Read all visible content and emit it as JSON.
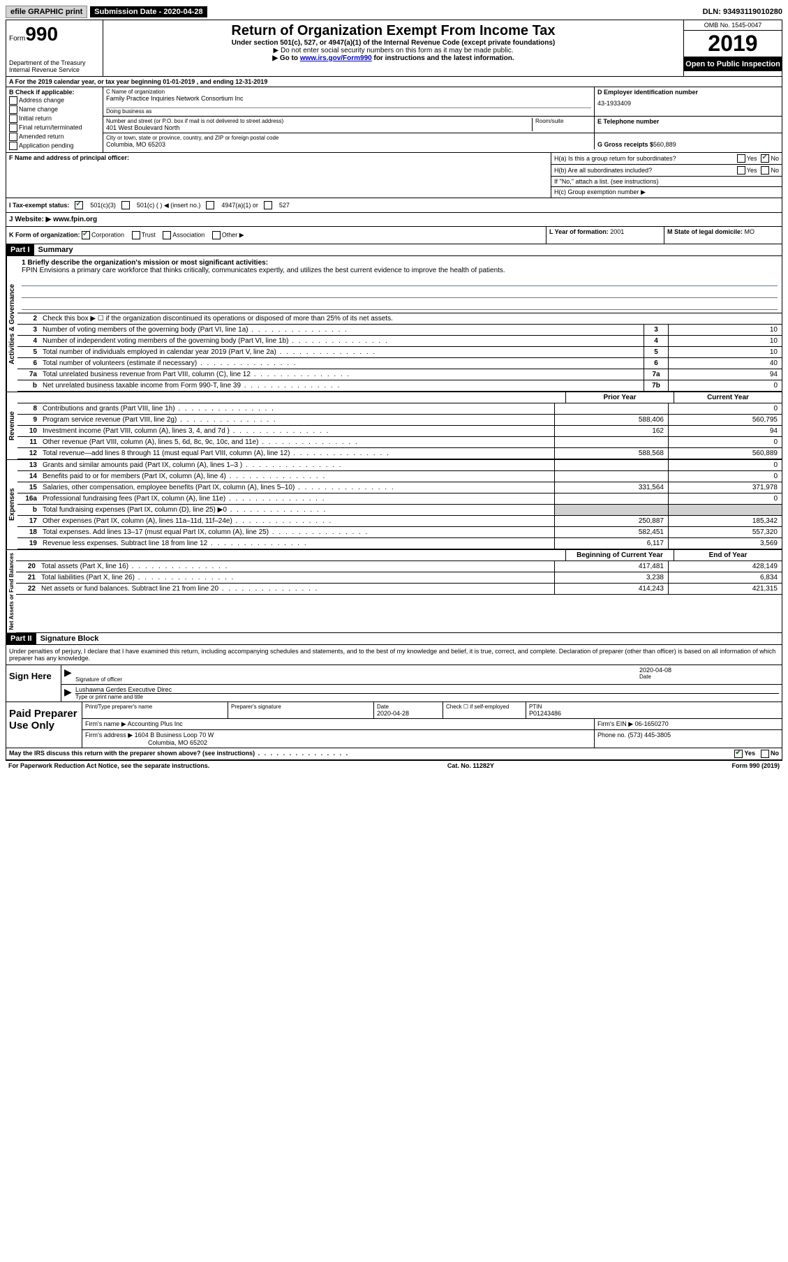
{
  "topbar": {
    "efile": "efile GRAPHIC print",
    "submission_label": "Submission Date - 2020-04-28",
    "dln": "DLN: 93493119010280"
  },
  "header": {
    "form_label": "Form",
    "form_number": "990",
    "dept": "Department of the Treasury\nInternal Revenue Service",
    "title": "Return of Organization Exempt From Income Tax",
    "subtitle": "Under section 501(c), 527, or 4947(a)(1) of the Internal Revenue Code (except private foundations)",
    "inst1": "▶ Do not enter social security numbers on this form as it may be made public.",
    "inst2_pre": "▶ Go to ",
    "inst2_link": "www.irs.gov/Form990",
    "inst2_post": " for instructions and the latest information.",
    "omb": "OMB No. 1545-0047",
    "year": "2019",
    "inspection": "Open to Public Inspection"
  },
  "line_a": "A   For the 2019 calendar year, or tax year beginning 01-01-2019    , and ending 12-31-2019",
  "section_b": {
    "label": "B Check if applicable:",
    "items": [
      "Address change",
      "Name change",
      "Initial return",
      "Final return/terminated",
      "Amended return",
      "Application pending"
    ]
  },
  "section_c": {
    "name_label": "C Name of organization",
    "name": "Family Practice Inquiries Network Consortium Inc",
    "dba_label": "Doing business as",
    "dba": "",
    "addr_label": "Number and street (or P.O. box if mail is not delivered to street address)",
    "room_label": "Room/suite",
    "addr": "401 West Boulevard North",
    "city_label": "City or town, state or province, country, and ZIP or foreign postal code",
    "city": "Columbia, MO  65203"
  },
  "section_d": {
    "label": "D Employer identification number",
    "value": "43-1933409"
  },
  "section_e": {
    "label": "E Telephone number",
    "value": ""
  },
  "section_g": {
    "label": "G Gross receipts $",
    "value": "560,889"
  },
  "section_f": {
    "label": "F  Name and address of principal officer:",
    "value": ""
  },
  "section_h": {
    "ha": "H(a)  Is this a group return for subordinates?",
    "hb": "H(b)  Are all subordinates included?",
    "hb_note": "If \"No,\" attach a list. (see instructions)",
    "hc": "H(c)  Group exemption number ▶"
  },
  "section_i": {
    "label": "I   Tax-exempt status:",
    "opts": [
      "501(c)(3)",
      "501(c) (  ) ◀ (insert no.)",
      "4947(a)(1) or",
      "527"
    ]
  },
  "section_j": {
    "label": "J   Website: ▶",
    "value": "www.fpin.org"
  },
  "section_k": {
    "label": "K Form of organization:",
    "opts": [
      "Corporation",
      "Trust",
      "Association",
      "Other ▶"
    ]
  },
  "section_l": {
    "label": "L Year of formation:",
    "value": "2001"
  },
  "section_m": {
    "label": "M State of legal domicile:",
    "value": "MO"
  },
  "part1": {
    "header": "Part I",
    "title": "Summary",
    "mission_label": "1   Briefly describe the organization's mission or most significant activities:",
    "mission": "FPIN Envisions a primary care workforce that thinks critically, communicates expertly, and utilizes the best current evidence to improve the health of patients.",
    "line2": "Check this box ▶ ☐  if the organization discontinued its operations or disposed of more than 25% of its net assets.",
    "rows_gov": [
      {
        "n": "3",
        "t": "Number of voting members of the governing body (Part VI, line 1a)",
        "b": "3",
        "v": "10"
      },
      {
        "n": "4",
        "t": "Number of independent voting members of the governing body (Part VI, line 1b)",
        "b": "4",
        "v": "10"
      },
      {
        "n": "5",
        "t": "Total number of individuals employed in calendar year 2019 (Part V, line 2a)",
        "b": "5",
        "v": "10"
      },
      {
        "n": "6",
        "t": "Total number of volunteers (estimate if necessary)",
        "b": "6",
        "v": "40"
      },
      {
        "n": "7a",
        "t": "Total unrelated business revenue from Part VIII, column (C), line 12",
        "b": "7a",
        "v": "94"
      },
      {
        "n": "b",
        "t": "Net unrelated business taxable income from Form 990-T, line 39",
        "b": "7b",
        "v": "0"
      }
    ],
    "col_prior": "Prior Year",
    "col_current": "Current Year",
    "rows_rev": [
      {
        "n": "8",
        "t": "Contributions and grants (Part VIII, line 1h)",
        "p": "",
        "c": "0"
      },
      {
        "n": "9",
        "t": "Program service revenue (Part VIII, line 2g)",
        "p": "588,406",
        "c": "560,795"
      },
      {
        "n": "10",
        "t": "Investment income (Part VIII, column (A), lines 3, 4, and 7d )",
        "p": "162",
        "c": "94"
      },
      {
        "n": "11",
        "t": "Other revenue (Part VIII, column (A), lines 5, 6d, 8c, 9c, 10c, and 11e)",
        "p": "",
        "c": "0"
      },
      {
        "n": "12",
        "t": "Total revenue—add lines 8 through 11 (must equal Part VIII, column (A), line 12)",
        "p": "588,568",
        "c": "560,889"
      }
    ],
    "rows_exp": [
      {
        "n": "13",
        "t": "Grants and similar amounts paid (Part IX, column (A), lines 1–3 )",
        "p": "",
        "c": "0"
      },
      {
        "n": "14",
        "t": "Benefits paid to or for members (Part IX, column (A), line 4)",
        "p": "",
        "c": "0"
      },
      {
        "n": "15",
        "t": "Salaries, other compensation, employee benefits (Part IX, column (A), lines 5–10)",
        "p": "331,564",
        "c": "371,978"
      },
      {
        "n": "16a",
        "t": "Professional fundraising fees (Part IX, column (A), line 11e)",
        "p": "",
        "c": "0"
      },
      {
        "n": "b",
        "t": "Total fundraising expenses (Part IX, column (D), line 25) ▶0",
        "p": "SHADE",
        "c": "SHADE"
      },
      {
        "n": "17",
        "t": "Other expenses (Part IX, column (A), lines 11a–11d, 11f–24e)",
        "p": "250,887",
        "c": "185,342"
      },
      {
        "n": "18",
        "t": "Total expenses. Add lines 13–17 (must equal Part IX, column (A), line 25)",
        "p": "582,451",
        "c": "557,320"
      },
      {
        "n": "19",
        "t": "Revenue less expenses. Subtract line 18 from line 12",
        "p": "6,117",
        "c": "3,569"
      }
    ],
    "col_begin": "Beginning of Current Year",
    "col_end": "End of Year",
    "rows_net": [
      {
        "n": "20",
        "t": "Total assets (Part X, line 16)",
        "p": "417,481",
        "c": "428,149"
      },
      {
        "n": "21",
        "t": "Total liabilities (Part X, line 26)",
        "p": "3,238",
        "c": "6,834"
      },
      {
        "n": "22",
        "t": "Net assets or fund balances. Subtract line 21 from line 20",
        "p": "414,243",
        "c": "421,315"
      }
    ],
    "vlabels": {
      "gov": "Activities & Governance",
      "rev": "Revenue",
      "exp": "Expenses",
      "net": "Net Assets or Fund Balances"
    }
  },
  "part2": {
    "header": "Part II",
    "title": "Signature Block",
    "declaration": "Under penalties of perjury, I declare that I have examined this return, including accompanying schedules and statements, and to the best of my knowledge and belief, it is true, correct, and complete. Declaration of preparer (other than officer) is based on all information of which preparer has any knowledge."
  },
  "sign": {
    "label": "Sign Here",
    "sig_label": "Signature of officer",
    "date_label": "Date",
    "date": "2020-04-08",
    "name": "Lushawna Gerdes  Executive Direc",
    "name_label": "Type or print name and title"
  },
  "preparer": {
    "label": "Paid Preparer Use Only",
    "name_h": "Print/Type preparer's name",
    "sig_h": "Preparer's signature",
    "date_h": "Date",
    "date": "2020-04-28",
    "check_label": "Check ☐ if self-employed",
    "ptin_h": "PTIN",
    "ptin": "P01243486",
    "firm_name_l": "Firm's name    ▶",
    "firm_name": "Accounting Plus Inc",
    "firm_ein_l": "Firm's EIN ▶",
    "firm_ein": "06-1650270",
    "firm_addr_l": "Firm's address ▶",
    "firm_addr": "1604 B Business Loop 70 W",
    "firm_city": "Columbia, MO  65202",
    "phone_l": "Phone no.",
    "phone": "(573) 445-3805"
  },
  "footer": {
    "discuss": "May the IRS discuss this return with the preparer shown above? (see instructions)",
    "paperwork": "For Paperwork Reduction Act Notice, see the separate instructions.",
    "cat": "Cat. No. 11282Y",
    "formref": "Form 990 (2019)"
  }
}
